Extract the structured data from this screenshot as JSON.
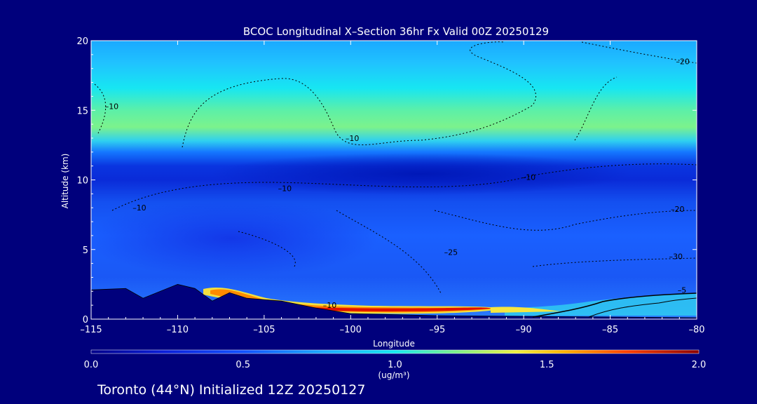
{
  "chart_data": {
    "type": "heatmap",
    "title": "BCOC Longitudinal X–Section 36hr  Fx Valid 00Z 20250129",
    "xlabel": "Longitude",
    "ylabel": "Altitude (km)",
    "xlim": [
      -115,
      -80
    ],
    "ylim": [
      0,
      20
    ],
    "x_ticks": [
      -115,
      -110,
      -105,
      -100,
      -95,
      -90,
      -85,
      -80
    ],
    "x_tick_labels": [
      "–115",
      "–110",
      "–105",
      "–100",
      "–95",
      "–90",
      "–85",
      "–80"
    ],
    "y_ticks": [
      0,
      5,
      10,
      15,
      20
    ],
    "y_tick_labels": [
      "0",
      "5",
      "10",
      "15",
      "20"
    ],
    "colorbar": {
      "min": 0.0,
      "max": 2.0,
      "ticks": [
        0.0,
        0.5,
        1.0,
        1.5,
        2.0
      ],
      "tick_labels": [
        "0.0",
        "0.5",
        "1.0",
        "1.5",
        "2.0"
      ],
      "unit_label": "(ug/m³)"
    },
    "terrain_km": [
      {
        "lon": -115,
        "alt": 2.1
      },
      {
        "lon": -113,
        "alt": 2.2
      },
      {
        "lon": -112,
        "alt": 1.5
      },
      {
        "lon": -110,
        "alt": 2.5
      },
      {
        "lon": -109,
        "alt": 2.2
      },
      {
        "lon": -108,
        "alt": 1.3
      },
      {
        "lon": -107,
        "alt": 1.9
      },
      {
        "lon": -106,
        "alt": 1.5
      },
      {
        "lon": -104,
        "alt": 1.3
      },
      {
        "lon": -102,
        "alt": 0.8
      },
      {
        "lon": -100,
        "alt": 0.4
      },
      {
        "lon": -95,
        "alt": 0.25
      },
      {
        "lon": -90,
        "alt": 0.2
      },
      {
        "lon": -85,
        "alt": 0.15
      },
      {
        "lon": -80,
        "alt": 0.1
      }
    ],
    "contour_labels": [
      {
        "text": "–10",
        "lon": -114.2,
        "alt": 15.1
      },
      {
        "text": "–20",
        "lon": -81.2,
        "alt": 18.3
      },
      {
        "text": "–10",
        "lon": -100.3,
        "alt": 12.8
      },
      {
        "text": "–10",
        "lon": -104.2,
        "alt": 9.2
      },
      {
        "text": "–10",
        "lon": -112.6,
        "alt": 7.8
      },
      {
        "text": "–10",
        "lon": -90.1,
        "alt": 10.0
      },
      {
        "text": "–20",
        "lon": -81.5,
        "alt": 7.7
      },
      {
        "text": "–25",
        "lon": -94.6,
        "alt": 4.6
      },
      {
        "text": "–30",
        "lon": -81.6,
        "alt": 4.3
      },
      {
        "text": "–10",
        "lon": -101.6,
        "alt": 0.8
      },
      {
        "text": "–5",
        "lon": -81.1,
        "alt": 1.9
      }
    ]
  },
  "footer": {
    "location_text": "Toronto (44°N) Initialized 12Z 20250127"
  },
  "colors": {
    "background": "#00007c",
    "terrain": "#00007c",
    "text": "#ffffff"
  }
}
